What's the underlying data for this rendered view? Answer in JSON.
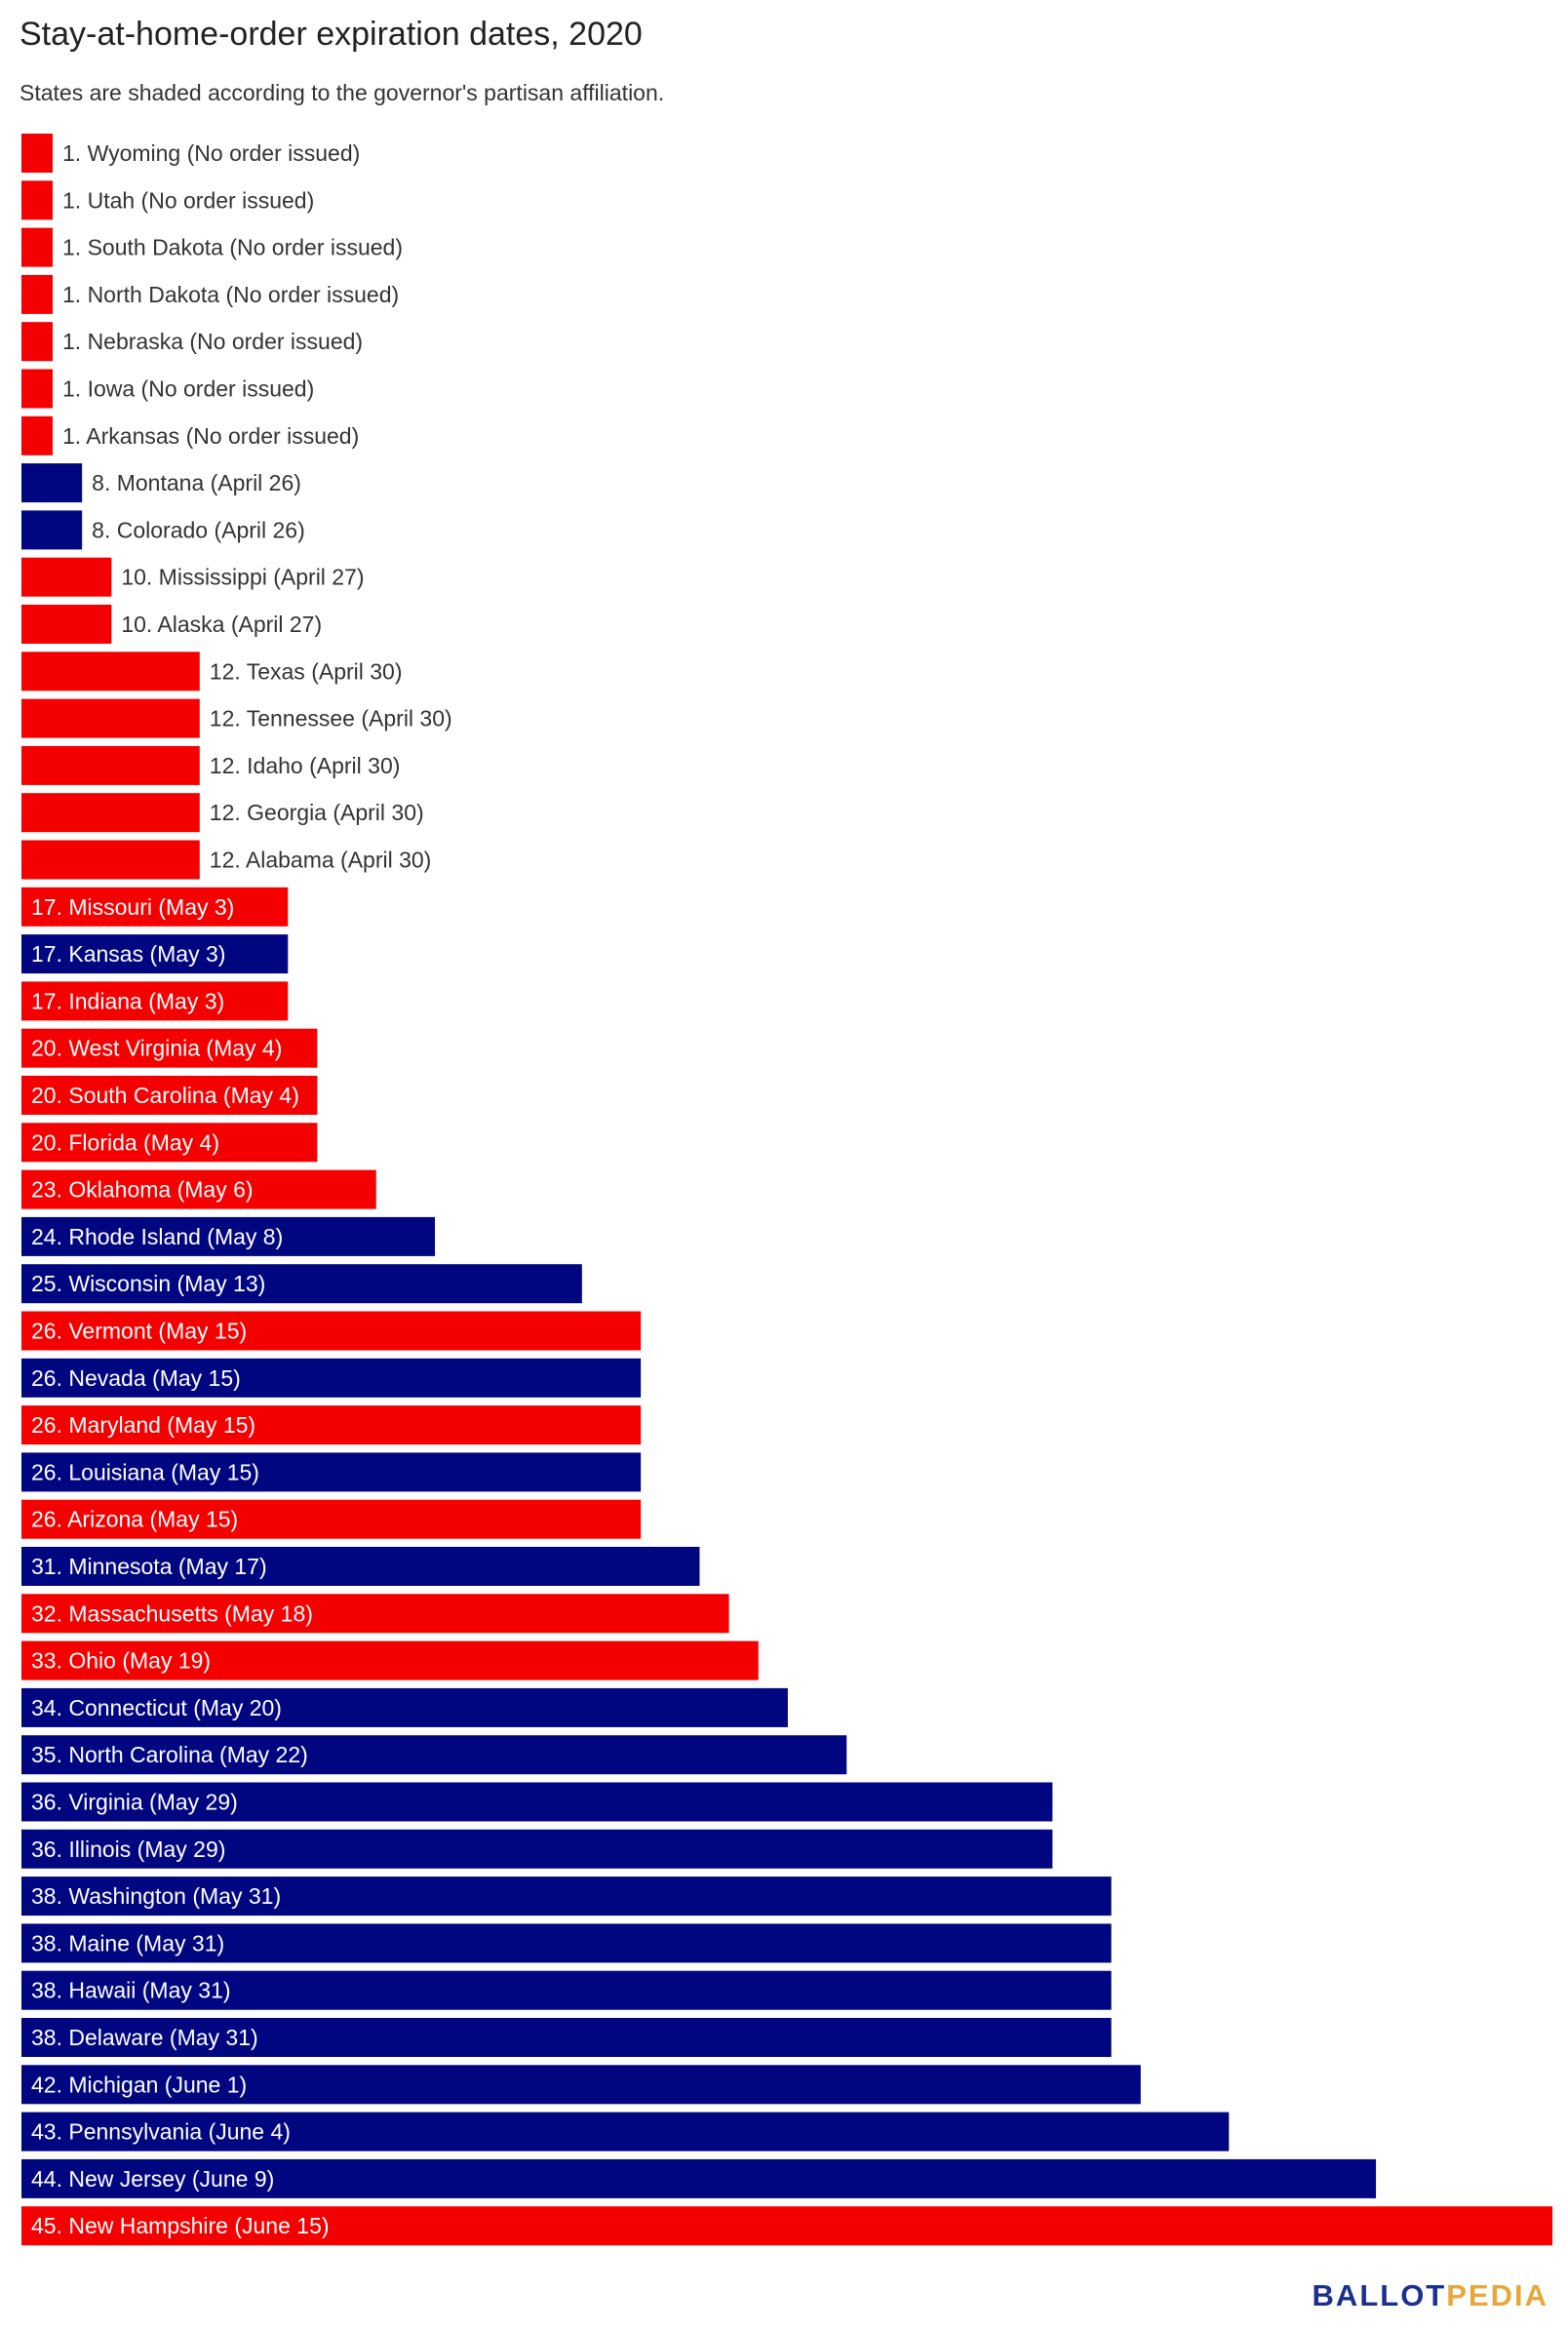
{
  "title": "Stay-at-home-order expiration dates, 2020",
  "subtitle": "States are shaded according to the governor's partisan affiliation.",
  "logo": {
    "part1": "BALLOT",
    "part2": "PEDIA"
  },
  "colors": {
    "republican": "#f40000",
    "democratic": "#00067f",
    "label_outside": "#333333",
    "label_inside": "#ffffff"
  },
  "chart_data": {
    "type": "bar",
    "orientation": "horizontal",
    "value_unit": "days after the first expiration date shown (April 26, 2020); 0 = no order issued",
    "categories": [
      "1. Wyoming (No order issued)",
      "1. Utah (No order issued)",
      "1. South Dakota (No order issued)",
      "1. North Dakota (No order issued)",
      "1. Nebraska (No order issued)",
      "1. Iowa (No order issued)",
      "1. Arkansas (No order issued)",
      "8. Montana (April 26)",
      "8. Colorado (April 26)",
      "10. Mississippi (April 27)",
      "10. Alaska (April 27)",
      "12. Texas (April 30)",
      "12. Tennessee (April 30)",
      "12. Idaho (April 30)",
      "12. Georgia (April 30)",
      "12. Alabama (April 30)",
      "17. Missouri (May 3)",
      "17. Kansas (May 3)",
      "17. Indiana (May 3)",
      "20. West Virginia (May 4)",
      "20. South Carolina (May 4)",
      "20. Florida (May 4)",
      "23. Oklahoma (May 6)",
      "24. Rhode Island (May 8)",
      "25. Wisconsin (May 13)",
      "26. Vermont (May 15)",
      "26. Nevada (May 15)",
      "26. Maryland (May 15)",
      "26. Louisiana (May 15)",
      "26. Arizona (May 15)",
      "31. Minnesota (May 17)",
      "32. Massachusetts (May 18)",
      "33. Ohio (May 19)",
      "34. Connecticut (May 20)",
      "35. North Carolina (May 22)",
      "36. Virginia (May 29)",
      "36. Illinois (May 29)",
      "38. Washington (May 31)",
      "38. Maine (May 31)",
      "38. Hawaii (May 31)",
      "38. Delaware (May 31)",
      "42. Michigan (June 1)",
      "43. Pennsylvania (June 4)",
      "44. New Jersey (June 9)",
      "45. New Hampshire (June 15)"
    ],
    "values": [
      0,
      0,
      0,
      0,
      0,
      0,
      0,
      1,
      1,
      2,
      2,
      5,
      5,
      5,
      5,
      5,
      8,
      8,
      8,
      9,
      9,
      9,
      11,
      13,
      18,
      20,
      20,
      20,
      20,
      20,
      22,
      23,
      24,
      25,
      27,
      34,
      34,
      36,
      36,
      36,
      36,
      37,
      40,
      45,
      51
    ],
    "party": [
      "R",
      "R",
      "R",
      "R",
      "R",
      "R",
      "R",
      "D",
      "D",
      "R",
      "R",
      "R",
      "R",
      "R",
      "R",
      "R",
      "R",
      "D",
      "R",
      "R",
      "R",
      "R",
      "R",
      "D",
      "D",
      "R",
      "D",
      "R",
      "D",
      "R",
      "D",
      "R",
      "R",
      "D",
      "D",
      "D",
      "D",
      "D",
      "D",
      "D",
      "D",
      "D",
      "D",
      "D",
      "R"
    ],
    "xlim": [
      0,
      51
    ],
    "grid": false,
    "legend": "none"
  }
}
